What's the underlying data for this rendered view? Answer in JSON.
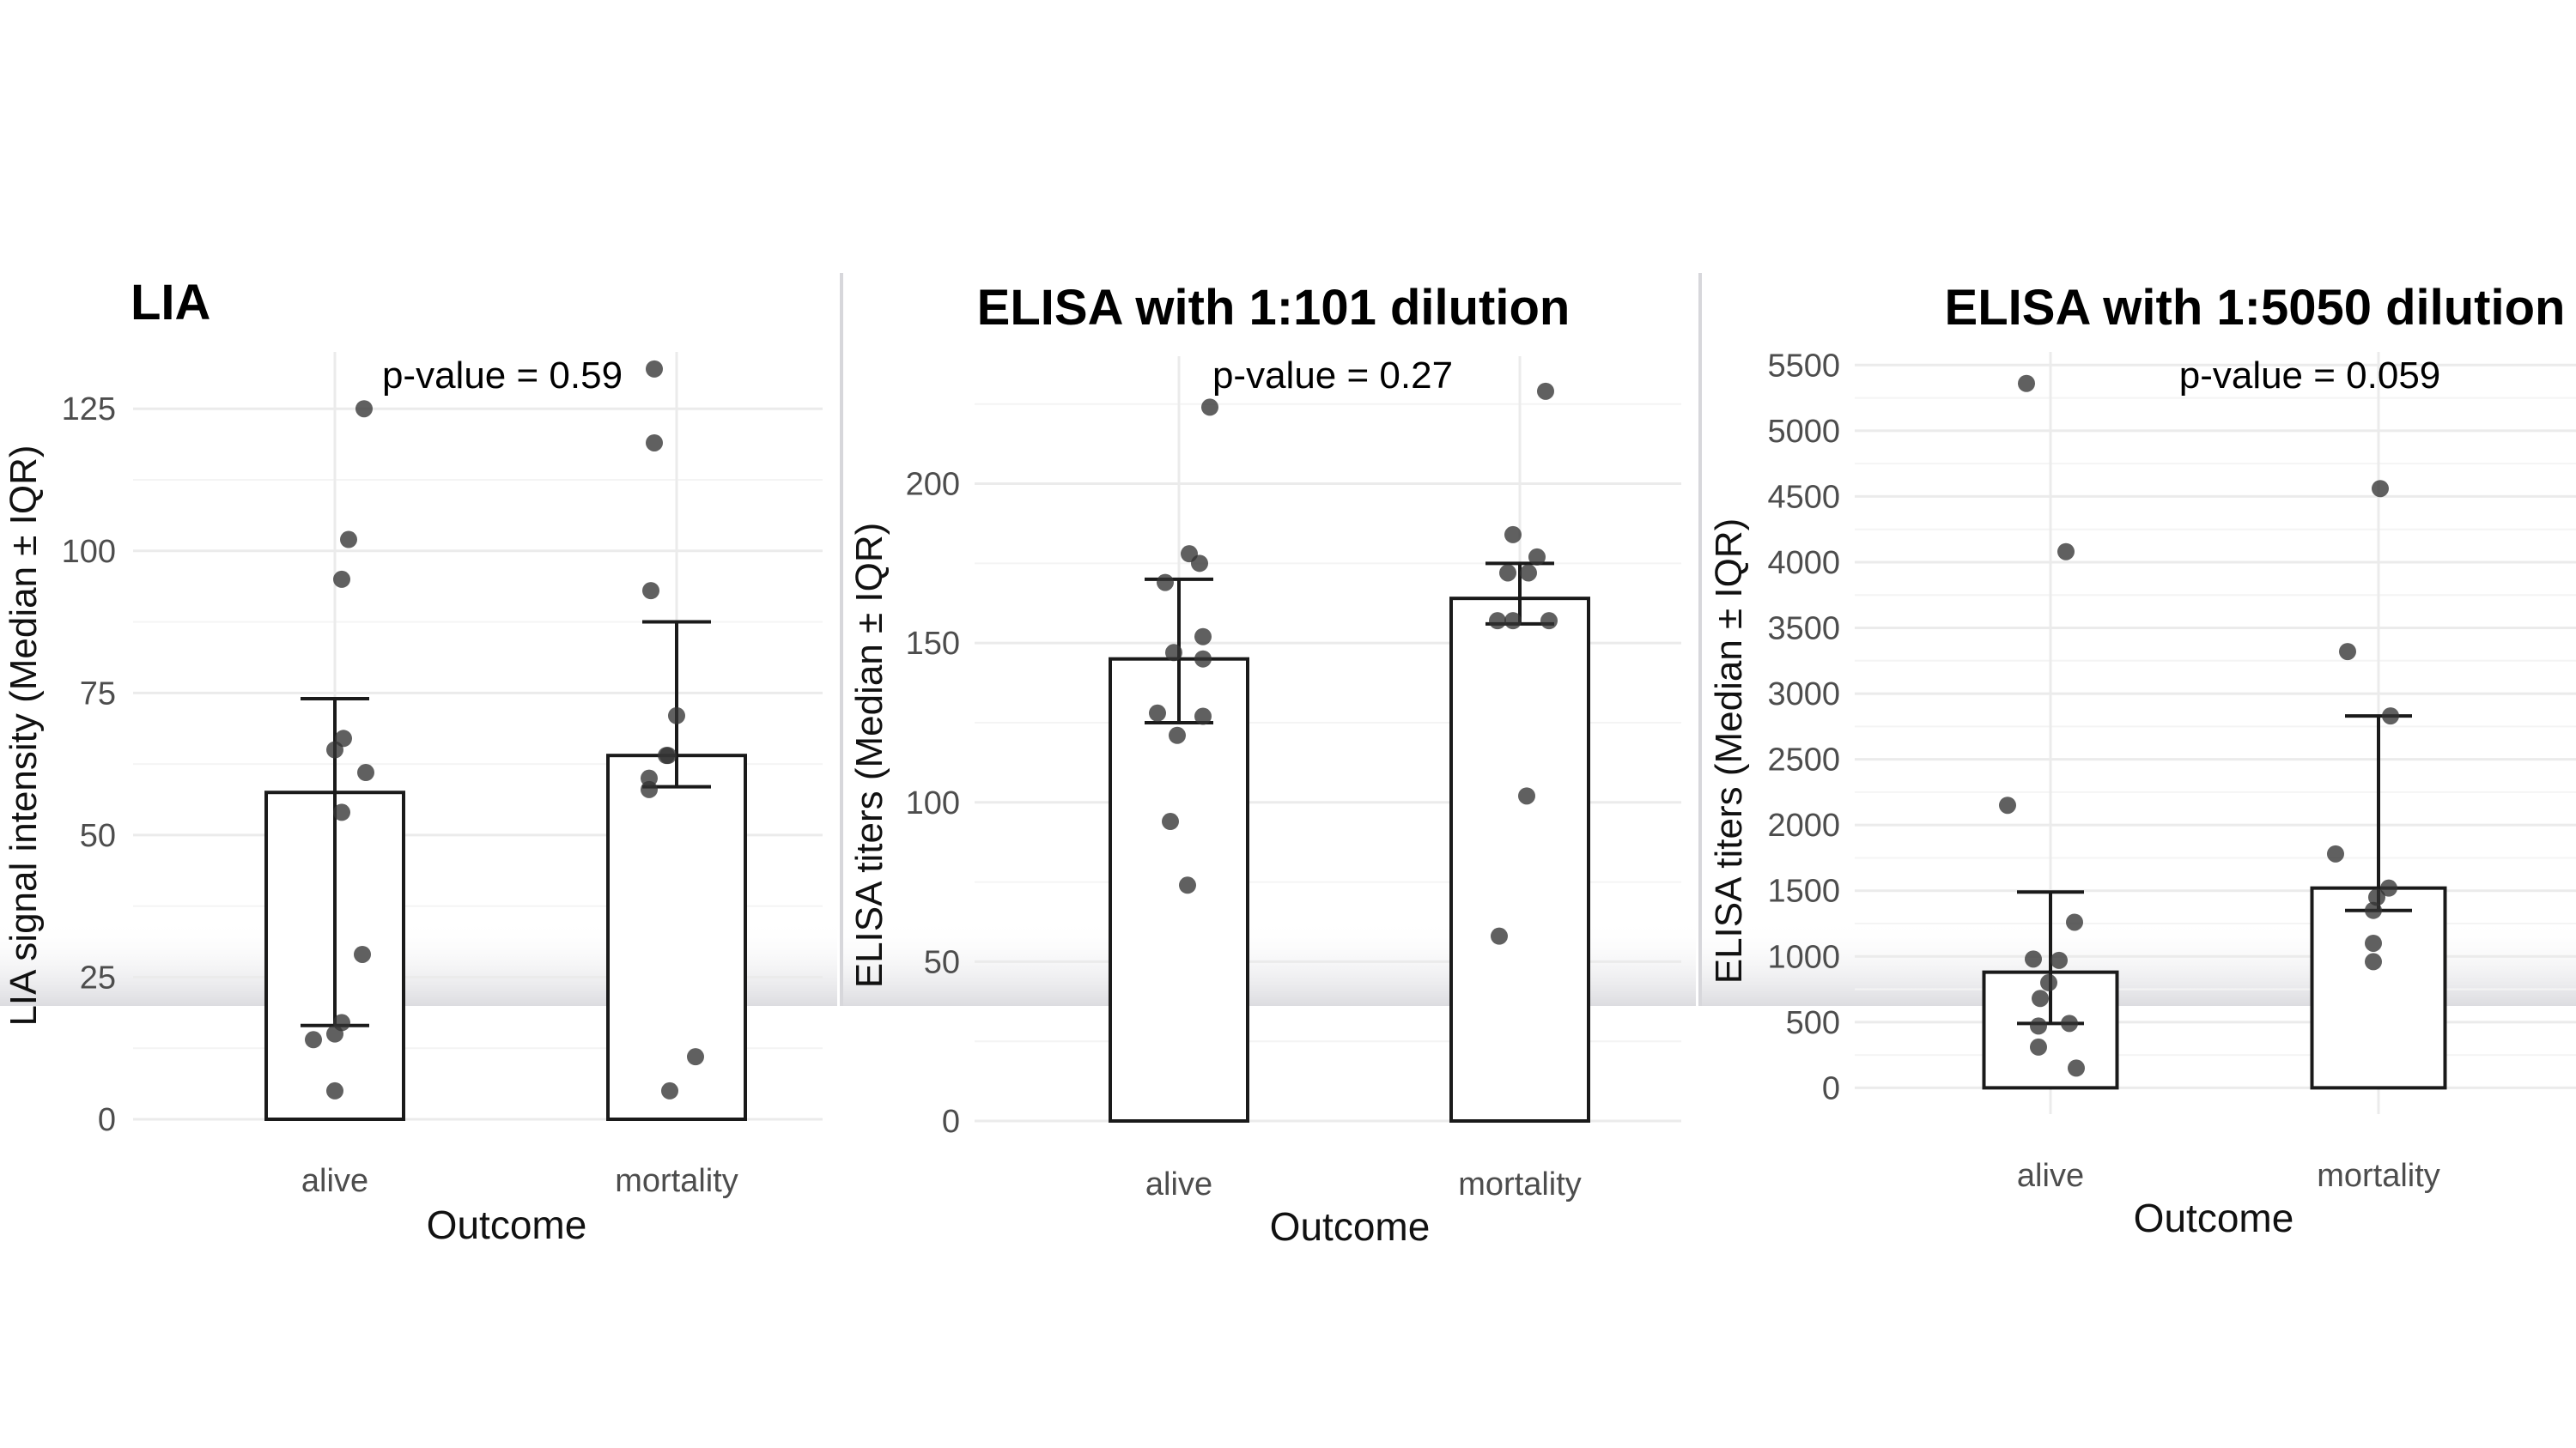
{
  "chart_data": [
    {
      "type": "bar",
      "title": "LIA",
      "annotation": "p-value = 0.59",
      "xlabel": "Outcome",
      "ylabel": "LIA signal intensity (Median ± IQR)",
      "categories": [
        "alive",
        "mortality"
      ],
      "values": [
        57.5,
        64
      ],
      "error_low": [
        16.5,
        58.5
      ],
      "error_high": [
        74,
        87.5
      ],
      "ylim": [
        0,
        135
      ],
      "yticks": [
        0,
        25,
        50,
        75,
        100,
        125
      ],
      "ytick_labels": [
        "0",
        "25",
        "50",
        "75",
        "100",
        "125"
      ],
      "grid": true,
      "points": [
        {
          "category": "alive",
          "values": [
            125,
            102,
            95,
            67,
            65,
            61,
            54,
            29,
            17,
            15,
            14,
            5
          ]
        },
        {
          "category": "mortality",
          "values": [
            132,
            119,
            93,
            71,
            64,
            64,
            60,
            58,
            11,
            5
          ]
        }
      ]
    },
    {
      "type": "bar",
      "title": "ELISA with 1:101 dilution",
      "annotation": "p-value = 0.27",
      "xlabel": "Outcome",
      "ylabel": "ELISA titers (Median ± IQR)",
      "categories": [
        "alive",
        "mortality"
      ],
      "values": [
        145,
        164
      ],
      "error_low": [
        125,
        156
      ],
      "error_high": [
        170,
        175
      ],
      "ylim": [
        0,
        240
      ],
      "yticks": [
        0,
        50,
        100,
        150,
        200
      ],
      "ytick_labels": [
        "0",
        "50",
        "100",
        "150",
        "200"
      ],
      "grid": true,
      "points": [
        {
          "category": "alive",
          "values": [
            224,
            178,
            175,
            169,
            152,
            147,
            145,
            128,
            127,
            121,
            94,
            74
          ]
        },
        {
          "category": "mortality",
          "values": [
            229,
            184,
            177,
            172,
            172,
            157,
            157,
            157,
            102,
            58
          ]
        }
      ]
    },
    {
      "type": "bar",
      "title": "ELISA with 1:5050 dilution",
      "annotation": "p-value = 0.059",
      "xlabel": "Outcome",
      "ylabel": "ELISA titers (Median ± IQR)",
      "categories": [
        "alive",
        "mortality"
      ],
      "values": [
        880,
        1520
      ],
      "error_low": [
        490,
        1350
      ],
      "error_high": [
        1490,
        2830
      ],
      "ylim": [
        -200,
        5600
      ],
      "yticks": [
        0,
        500,
        1000,
        1500,
        2000,
        2500,
        3000,
        3500,
        4000,
        4500,
        5000,
        5500
      ],
      "ytick_labels": [
        "0",
        "500",
        "1000",
        "1500",
        "2000",
        "2500",
        "3000",
        "3500",
        "4000",
        "4500",
        "5000",
        "5500"
      ],
      "grid": true,
      "points": [
        {
          "category": "alive",
          "values": [
            5360,
            4080,
            2150,
            1260,
            980,
            970,
            800,
            680,
            490,
            470,
            310,
            150
          ]
        },
        {
          "category": "mortality",
          "values": [
            4560,
            3320,
            2830,
            1780,
            1520,
            1450,
            1350,
            1100,
            960
          ]
        }
      ]
    }
  ]
}
